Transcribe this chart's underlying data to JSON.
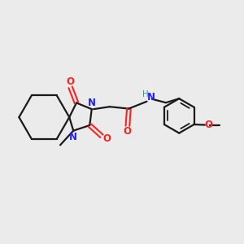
{
  "bg_color": "#ebebeb",
  "bond_color": "#1a1a1a",
  "N_color": "#2020ff",
  "O_color": "#ff2020",
  "NH_color": "#3a9090",
  "line_width": 1.6,
  "font_size": 8.5,
  "fig_size": [
    3.0,
    3.0
  ],
  "dpi": 100,
  "xlim": [
    0,
    10
  ],
  "ylim": [
    1,
    9
  ]
}
